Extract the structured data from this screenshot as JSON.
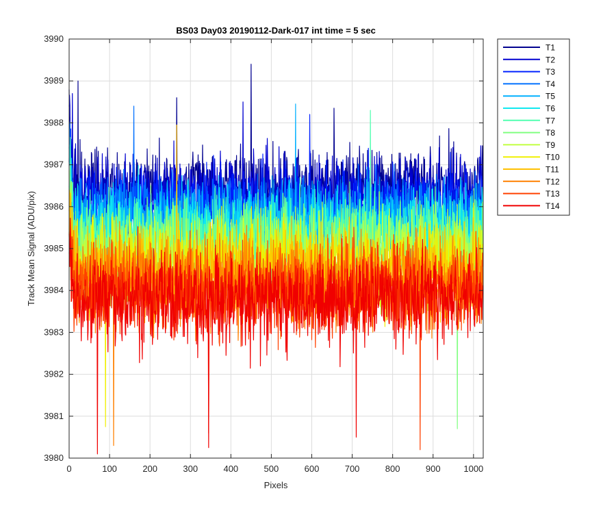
{
  "chart_data": {
    "type": "line",
    "title": "BS03 Day03 20190112-Dark-017 int time = 5 sec",
    "xlabel": "Pixels",
    "ylabel": "Track Mean Signal (ADU/pix)",
    "xlim": [
      0,
      1024
    ],
    "ylim": [
      3980,
      3990
    ],
    "xticks": [
      0,
      100,
      200,
      300,
      400,
      500,
      600,
      700,
      800,
      900,
      1000
    ],
    "yticks": [
      3980,
      3981,
      3982,
      3983,
      3984,
      3985,
      3986,
      3987,
      3988,
      3989,
      3990
    ],
    "grid": true,
    "legend_position": "outside-right",
    "samples_per_series": 1024,
    "series": [
      {
        "name": "T1",
        "color": "#00008f",
        "mean": 3986.4,
        "spread": 0.75,
        "spikes": [
          [
            450,
            3989.4
          ],
          [
            22,
            3989.0
          ],
          [
            655,
            3988.35
          ],
          [
            266,
            3988.6
          ]
        ]
      },
      {
        "name": "T2",
        "color": "#0000d0",
        "mean": 3986.25,
        "spread": 0.75,
        "spikes": [
          [
            8,
            3988.7
          ],
          [
            430,
            3988.5
          ]
        ]
      },
      {
        "name": "T3",
        "color": "#0020ff",
        "mean": 3986.0,
        "spread": 0.75,
        "spikes": [
          [
            595,
            3988.2
          ]
        ]
      },
      {
        "name": "T4",
        "color": "#0070ff",
        "mean": 3985.8,
        "spread": 0.75,
        "spikes": [
          [
            160,
            3988.4
          ]
        ]
      },
      {
        "name": "T5",
        "color": "#00b0ff",
        "mean": 3985.6,
        "spread": 0.8,
        "spikes": [
          [
            560,
            3988.45
          ]
        ]
      },
      {
        "name": "T6",
        "color": "#10e8f0",
        "mean": 3985.4,
        "spread": 0.8,
        "spikes": []
      },
      {
        "name": "T7",
        "color": "#50ffb0",
        "mean": 3985.2,
        "spread": 0.8,
        "spikes": [
          [
            745,
            3988.3
          ]
        ]
      },
      {
        "name": "T8",
        "color": "#80ff80",
        "mean": 3985.0,
        "spread": 0.8,
        "spikes": [
          [
            960,
            3980.7
          ]
        ]
      },
      {
        "name": "T9",
        "color": "#c0ff40",
        "mean": 3984.8,
        "spread": 0.85,
        "spikes": []
      },
      {
        "name": "T10",
        "color": "#f0f000",
        "mean": 3984.6,
        "spread": 0.85,
        "spikes": [
          [
            90,
            3980.75
          ]
        ]
      },
      {
        "name": "T11",
        "color": "#ffc000",
        "mean": 3984.4,
        "spread": 0.85,
        "spikes": [
          [
            266,
            3987.95
          ]
        ]
      },
      {
        "name": "T12",
        "color": "#ff8000",
        "mean": 3984.2,
        "spread": 0.85,
        "spikes": [
          [
            110,
            3980.3
          ]
        ]
      },
      {
        "name": "T13",
        "color": "#ff4000",
        "mean": 3984.0,
        "spread": 0.85,
        "spikes": [
          [
            345,
            3980.6
          ],
          [
            868,
            3980.2
          ]
        ]
      },
      {
        "name": "T14",
        "color": "#f00000",
        "mean": 3983.8,
        "spread": 0.85,
        "spikes": [
          [
            70,
            3980.1
          ],
          [
            710,
            3980.5
          ],
          [
            345,
            3980.25
          ]
        ]
      }
    ]
  }
}
